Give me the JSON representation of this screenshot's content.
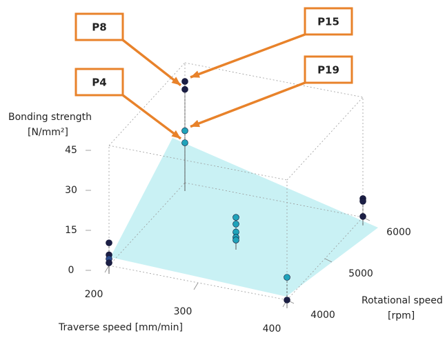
{
  "chart_data": {
    "type": "scatter3d",
    "xlabel": "Traverse speed [mm/min]",
    "ylabel": [
      "Rotational speed",
      "[rpm]"
    ],
    "zlabel": [
      "Bonding strength",
      "[N/mm²]"
    ],
    "xlim": [
      200,
      400
    ],
    "xticks": [
      200,
      300,
      400
    ],
    "ylim": [
      4000,
      6000
    ],
    "yticks": [
      4000,
      5000,
      6000
    ],
    "zlim": [
      0,
      45
    ],
    "zticks": [
      0,
      15,
      30,
      45
    ],
    "points": {
      "x": [
        200,
        200,
        200,
        200,
        200,
        200,
        200,
        200,
        300,
        300,
        300,
        300,
        300,
        400,
        400,
        400,
        400,
        400
      ],
      "y": [
        4000,
        4000,
        4000,
        4000,
        6000,
        6000,
        6000,
        6000,
        5000,
        5000,
        5000,
        5000,
        5000,
        4000,
        4000,
        6000,
        6000,
        6000
      ],
      "z": [
        8.5,
        4,
        2.5,
        1,
        38,
        35,
        19.5,
        15,
        9,
        6.5,
        3.5,
        1.5,
        0.5,
        8.5,
        0,
        7,
        6,
        0.3
      ],
      "colors": [
        "#1c1f45",
        "#1c1f45",
        "#2a4a8a",
        "#1c1f45",
        "#1c1f45",
        "#1c1f45",
        "#1fa3ba",
        "#1fa3ba",
        "#1fa3ba",
        "#1fa3ba",
        "#1fa3ba",
        "#1fa3ba",
        "#1fa3ba",
        "#1fa3ba",
        "#1c1f45",
        "#1c1f45",
        "#1c1f45",
        "#1c1f45"
      ],
      "labels": [
        null,
        null,
        null,
        null,
        "P15",
        "P8",
        "P19",
        "P4",
        null,
        null,
        null,
        null,
        null,
        null,
        null,
        null,
        null,
        null
      ]
    },
    "annotation_color": "#e8822a"
  }
}
